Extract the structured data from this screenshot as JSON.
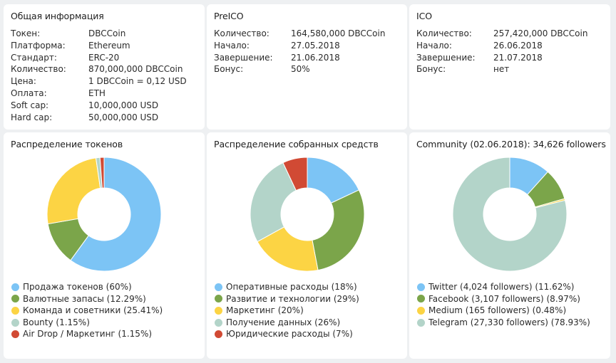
{
  "general": {
    "title": "Общая информация",
    "rows": [
      {
        "key": "Токен:",
        "value": "DBCCoin"
      },
      {
        "key": "Платформа:",
        "value": "Ethereum"
      },
      {
        "key": "Стандарт:",
        "value": "ERC-20"
      },
      {
        "key": "Количество:",
        "value": "870,000,000 DBCCoin"
      },
      {
        "key": "Цена:",
        "value": "1 DBCCoin = 0,12 USD"
      },
      {
        "key": "Оплата:",
        "value": "ETH"
      },
      {
        "key": "Soft cap:",
        "value": "10,000,000 USD"
      },
      {
        "key": "Hard cap:",
        "value": "50,000,000 USD"
      }
    ]
  },
  "preico": {
    "title": "PreICO",
    "rows": [
      {
        "key": "Количество:",
        "value": "164,580,000 DBCCoin"
      },
      {
        "key": "Начало:",
        "value": "27.05.2018"
      },
      {
        "key": "Завершение:",
        "value": "21.06.2018"
      },
      {
        "key": "Бонус:",
        "value": "50%"
      }
    ]
  },
  "ico": {
    "title": "ICO",
    "rows": [
      {
        "key": "Количество:",
        "value": "257,420,000 DBCCoin"
      },
      {
        "key": "Начало:",
        "value": "26.06.2018"
      },
      {
        "key": "Завершение:",
        "value": "21.07.2018"
      },
      {
        "key": "Бонус:",
        "value": "нет"
      }
    ]
  },
  "chart_data": [
    {
      "type": "pie",
      "title": "Распределение токенов",
      "start_angle_deg": 0,
      "slices": [
        {
          "label": "Продажа токенов (60%)",
          "value": 60,
          "color": "#7cc4f5"
        },
        {
          "label": "Валютные запасы (12.29%)",
          "value": 12.29,
          "color": "#7ba54a"
        },
        {
          "label": "Команда и советники (25.41%)",
          "value": 25.41,
          "color": "#fcd444"
        },
        {
          "label": "Bounty (1.15%)",
          "value": 1.15,
          "color": "#b3d4c9"
        },
        {
          "label": "Air Drop / Маркетинг (1.15%)",
          "value": 1.15,
          "color": "#d14a34"
        }
      ]
    },
    {
      "type": "pie",
      "title": "Распределение собранных средств",
      "start_angle_deg": 0,
      "slices": [
        {
          "label": "Оперативные расходы (18%)",
          "value": 18,
          "color": "#7cc4f5"
        },
        {
          "label": "Развитие и технологии (29%)",
          "value": 29,
          "color": "#7ba54a"
        },
        {
          "label": "Маркетинг (20%)",
          "value": 20,
          "color": "#fcd444"
        },
        {
          "label": "Получение данных (26%)",
          "value": 26,
          "color": "#b3d4c9"
        },
        {
          "label": "Юридические расходы (7%)",
          "value": 7,
          "color": "#d14a34"
        }
      ]
    },
    {
      "type": "pie",
      "title": "Community (02.06.2018): 34,626 followers",
      "start_angle_deg": 0,
      "slices": [
        {
          "label": "Twitter (4,024 followers) (11.62%)",
          "value": 11.62,
          "color": "#7cc4f5"
        },
        {
          "label": "Facebook (3,107 followers) (8.97%)",
          "value": 8.97,
          "color": "#7ba54a"
        },
        {
          "label": "Medium (165 followers) (0.48%)",
          "value": 0.48,
          "color": "#fcd444"
        },
        {
          "label": "Telegram (27,330 followers) (78.93%)",
          "value": 78.93,
          "color": "#b3d4c9"
        }
      ]
    }
  ]
}
